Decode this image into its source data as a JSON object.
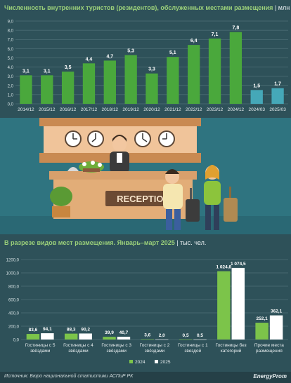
{
  "top_chart": {
    "title": "Численность внутренних туристов (резидентов), обслуженных местами размещения",
    "separator": "|",
    "unit": "млн чел.",
    "chart_data": {
      "type": "bar",
      "categories": [
        "2014/12",
        "2015/12",
        "2016/12",
        "2017/12",
        "2018/12",
        "2019/12",
        "2020/12",
        "2021/12",
        "2022/12",
        "2023/12",
        "2024/12",
        "2024/03",
        "2025/03"
      ],
      "values": [
        3.1,
        3.1,
        3.5,
        4.4,
        4.7,
        5.3,
        3.3,
        5.1,
        6.4,
        7.1,
        7.8,
        1.5,
        1.7
      ],
      "value_labels": [
        "3,1",
        "3,1",
        "3,5",
        "4,4",
        "4,7",
        "5,3",
        "3,3",
        "5,1",
        "6,4",
        "7,1",
        "7,8",
        "1,5",
        "1,7"
      ],
      "ylim": [
        0,
        9
      ],
      "yticks": [
        "0,0",
        "1,0",
        "2,0",
        "3,0",
        "4,0",
        "5,0",
        "6,0",
        "7,0",
        "8,0",
        "9,0"
      ],
      "grid": true,
      "colors": [
        "#4aa83c",
        "#4aa83c",
        "#4aa83c",
        "#4aa83c",
        "#4aa83c",
        "#4aa83c",
        "#4aa83c",
        "#4aa83c",
        "#4aa83c",
        "#4aa83c",
        "#4aa83c",
        "#45a8b8",
        "#45a8b8"
      ]
    }
  },
  "illustration": {
    "sign_text": "RECEPTION",
    "icons": [
      "clock-icon",
      "clock-icon",
      "clock-icon",
      "clock-icon",
      "receptionist-icon",
      "tourist-man-icon",
      "tourist-woman-icon",
      "suitcase-icon",
      "plant-icon",
      "bell-icon"
    ]
  },
  "bottom_chart": {
    "title": "В разрезе видов мест размещения. Январь–март 2025",
    "separator": "|",
    "unit": "тыс. чел.",
    "chart_data": {
      "type": "bar",
      "categories": [
        "Гостиницы с 5 звёздами",
        "Гостиницы с 4 звёздами",
        "Гостиницы с 3 звёздами",
        "Гостиницы с 2 звёздами",
        "Гостиницы с 1 звездой",
        "Гостиницы без категорий",
        "Прочие места размещения"
      ],
      "category_lines": [
        [
          "Гостиницы с 5",
          "звёздами"
        ],
        [
          "Гостиницы с 4",
          "звёздами"
        ],
        [
          "Гостиницы с 3",
          "звёздами"
        ],
        [
          "Гостиницы с 2",
          "звёздами"
        ],
        [
          "Гостиницы с 1",
          "звездой"
        ],
        [
          "Гостиницы без",
          "категорий"
        ],
        [
          "Прочие места",
          "размещения"
        ]
      ],
      "series": [
        {
          "name": "2024",
          "color": "#7cc44a",
          "values": [
            83.6,
            88.3,
            39.9,
            3.6,
            0.5,
            1024.8,
            252.1
          ],
          "labels": [
            "83,6",
            "88,3",
            "39,9",
            "3,6",
            "0,5",
            "1 024,8",
            "252,1"
          ]
        },
        {
          "name": "2025",
          "color": "#ffffff",
          "values": [
            94.1,
            90.2,
            40.7,
            2.0,
            0.5,
            1074.5,
            362.1
          ],
          "labels": [
            "94,1",
            "90,2",
            "40,7",
            "2,0",
            "0,5",
            "1 074,5",
            "362,1"
          ]
        }
      ],
      "ylim": [
        0,
        1200
      ],
      "yticks": [
        "0,0",
        "200,0",
        "400,0",
        "600,0",
        "800,0",
        "1000,0",
        "1200,0"
      ],
      "grid": true,
      "legend_position": "bottom-center"
    }
  },
  "footer": {
    "source": "Источник: Бюро национальной статистики АСПиР РК",
    "logo": "EnergyProm"
  }
}
